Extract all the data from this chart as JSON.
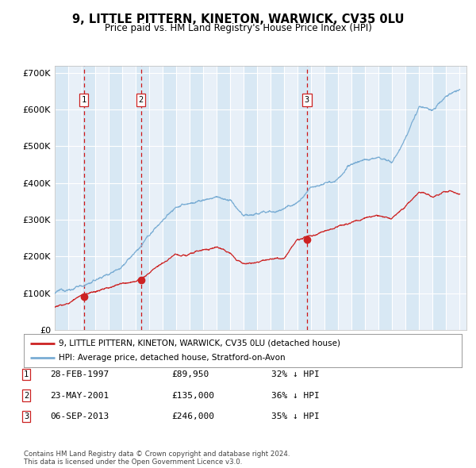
{
  "title": "9, LITTLE PITTERN, KINETON, WARWICK, CV35 0LU",
  "subtitle": "Price paid vs. HM Land Registry's House Price Index (HPI)",
  "ylim": [
    0,
    720000
  ],
  "xlim_start": 1995.0,
  "xlim_end": 2025.5,
  "yticks": [
    0,
    100000,
    200000,
    300000,
    400000,
    500000,
    600000,
    700000
  ],
  "ytick_labels": [
    "£0",
    "£100K",
    "£200K",
    "£300K",
    "£400K",
    "£500K",
    "£600K",
    "£700K"
  ],
  "xticks": [
    1995,
    1996,
    1997,
    1998,
    1999,
    2000,
    2001,
    2002,
    2003,
    2004,
    2005,
    2006,
    2007,
    2008,
    2009,
    2010,
    2011,
    2012,
    2013,
    2014,
    2015,
    2016,
    2017,
    2018,
    2019,
    2020,
    2021,
    2022,
    2023,
    2024,
    2025
  ],
  "sale_dates": [
    1997.16,
    2001.39,
    2013.68
  ],
  "sale_prices": [
    89950,
    135000,
    246000
  ],
  "sale_labels": [
    "1",
    "2",
    "3"
  ],
  "hpi_color": "#7aadd4",
  "price_color": "#cc2222",
  "marker_color": "#cc2222",
  "vline_color": "#cc0000",
  "grid_color": "#ffffff",
  "bg_stripe_color": "#d8e8f4",
  "bg_base_color": "#e8f0f8",
  "legend_label_price": "9, LITTLE PITTERN, KINETON, WARWICK, CV35 0LU (detached house)",
  "legend_label_hpi": "HPI: Average price, detached house, Stratford-on-Avon",
  "table_rows": [
    {
      "num": "1",
      "date": "28-FEB-1997",
      "price": "£89,950",
      "hpi": "32% ↓ HPI"
    },
    {
      "num": "2",
      "date": "23-MAY-2001",
      "price": "£135,000",
      "hpi": "36% ↓ HPI"
    },
    {
      "num": "3",
      "date": "06-SEP-2013",
      "price": "£246,000",
      "hpi": "35% ↓ HPI"
    }
  ],
  "footnote": "Contains HM Land Registry data © Crown copyright and database right 2024.\nThis data is licensed under the Open Government Licence v3.0.",
  "hpi_control_x": [
    1995,
    1996,
    1997,
    1998,
    1999,
    2000,
    2001,
    2002,
    2003,
    2004,
    2005,
    2006,
    2007,
    2008,
    2009,
    2010,
    2011,
    2012,
    2013,
    2014,
    2015,
    2016,
    2017,
    2018,
    2019,
    2020,
    2021,
    2022,
    2023,
    2024,
    2025
  ],
  "hpi_control_y": [
    100000,
    110000,
    120000,
    135000,
    155000,
    185000,
    220000,
    260000,
    305000,
    340000,
    348000,
    358000,
    368000,
    355000,
    308000,
    315000,
    320000,
    330000,
    355000,
    390000,
    415000,
    430000,
    460000,
    475000,
    480000,
    468000,
    530000,
    610000,
    595000,
    635000,
    655000
  ],
  "price_control_x": [
    1995,
    1996,
    1997,
    1998,
    1999,
    2000,
    2001,
    2002,
    2003,
    2004,
    2005,
    2006,
    2007,
    2008,
    2009,
    2010,
    2011,
    2012,
    2013,
    2014,
    2015,
    2016,
    2017,
    2018,
    2019,
    2020,
    2021,
    2022,
    2023,
    2024,
    2025
  ],
  "price_control_y": [
    62000,
    70000,
    90000,
    97000,
    110000,
    128000,
    135000,
    158000,
    182000,
    208000,
    210000,
    218000,
    225000,
    215000,
    185000,
    188000,
    192000,
    197000,
    246000,
    258000,
    268000,
    275000,
    292000,
    300000,
    302000,
    295000,
    332000,
    372000,
    360000,
    375000,
    370000
  ]
}
